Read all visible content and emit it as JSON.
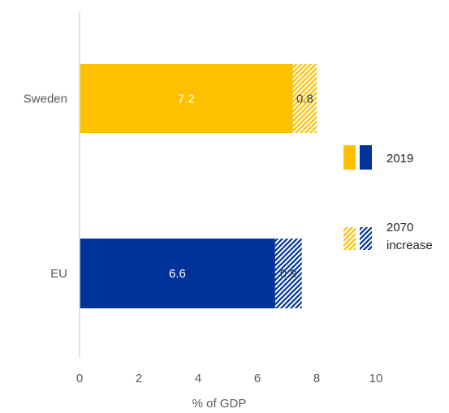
{
  "chart_data": {
    "type": "bar",
    "orientation": "horizontal",
    "stacked": true,
    "categories": [
      "Sweden",
      "EU"
    ],
    "series": [
      {
        "name": "2019",
        "values": [
          7.2,
          6.6
        ],
        "pattern": "solid",
        "labels": [
          "7.2",
          "6.6"
        ]
      },
      {
        "name": "2070 increase",
        "values": [
          0.8,
          0.9
        ],
        "pattern": "hatched",
        "labels": [
          "0.8",
          "0.9"
        ]
      }
    ],
    "category_colors": {
      "Sweden": "#FFC000",
      "EU": "#003399"
    },
    "xlabel": "% of GDP",
    "ylabel": "",
    "xlim": [
      0,
      10
    ],
    "xticks": [
      "0",
      "2",
      "4",
      "6",
      "8",
      "10"
    ],
    "grid": false,
    "legend": {
      "placement": "right",
      "entries": [
        {
          "label": "2019",
          "style": "solid"
        },
        {
          "label_lines": [
            "2070",
            "increase"
          ],
          "style": "hatched"
        }
      ]
    }
  }
}
